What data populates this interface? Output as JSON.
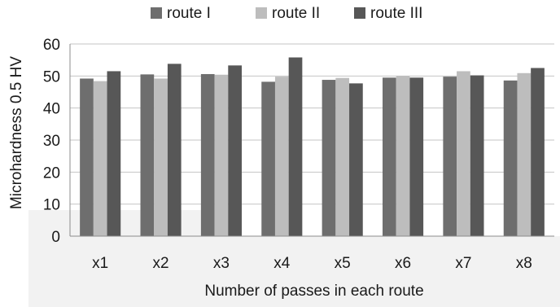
{
  "chart_data": {
    "type": "bar",
    "title": "",
    "xlabel": "Number of passes in each route",
    "ylabel": "Microhardness 0.5 HV",
    "ylim": [
      0,
      60
    ],
    "yticks": [
      0,
      10,
      20,
      30,
      40,
      50,
      60
    ],
    "grid": true,
    "legend_position": "top",
    "categories": [
      "x1",
      "x2",
      "x3",
      "x4",
      "x5",
      "x6",
      "x7",
      "x8"
    ],
    "series": [
      {
        "name": "route I",
        "color": "#6e6e6e",
        "values": [
          49.2,
          50.5,
          50.6,
          48.2,
          48.8,
          49.5,
          49.8,
          48.6
        ]
      },
      {
        "name": "route II",
        "color": "#bdbdbd",
        "values": [
          48.4,
          49.2,
          50.4,
          49.8,
          49.4,
          50.0,
          51.5,
          50.9
        ]
      },
      {
        "name": "route III",
        "color": "#575757",
        "values": [
          51.5,
          53.8,
          53.3,
          55.8,
          47.7,
          49.5,
          50.2,
          52.5
        ]
      }
    ]
  }
}
